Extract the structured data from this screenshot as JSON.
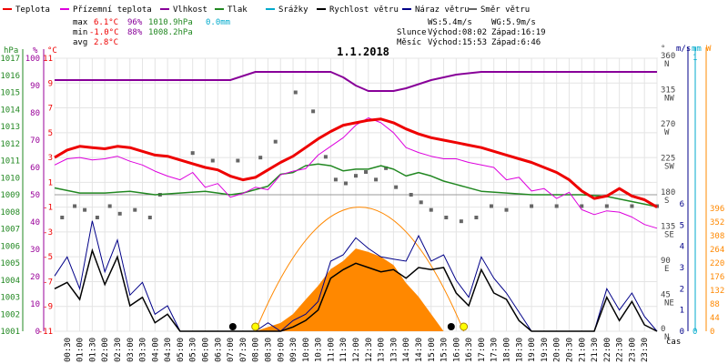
{
  "chart_data": {
    "type": "line",
    "title": "1.1.2018",
    "legend": [
      {
        "name": "Teplota",
        "color": "#ee0000"
      },
      {
        "name": "Přízemní teplota",
        "color": "#dd00dd"
      },
      {
        "name": "Vlhkost",
        "color": "#880099"
      },
      {
        "name": "Tlak",
        "color": "#228822"
      },
      {
        "name": "Srážky",
        "color": "#00aacc"
      },
      {
        "name": "Rychlost větru",
        "color": "#000000"
      },
      {
        "name": "Náraz větru",
        "color": "#000088"
      },
      {
        "name": "Směr větru",
        "color": "#666666"
      }
    ],
    "stats": {
      "max": {
        "label": "max",
        "temp": "6.1°C",
        "hum": "96%",
        "press": "1010.9hPa",
        "rain": "0.0mm"
      },
      "min": {
        "label": "min",
        "temp": "-1.0°C",
        "hum": "88%",
        "press": "1008.2hPa"
      },
      "avg": {
        "label": "avg",
        "temp": "2.8°C"
      }
    },
    "info": {
      "ws": "WS:5.4m/s",
      "wg": "WG:5.9m/s",
      "sun_label": "Slunce",
      "sun_rise": "Východ:08:02",
      "sun_set": "Západ:16:19",
      "moon_label": "Měsíc",
      "moon_rise": "Východ:15:53",
      "moon_set": "Západ:6:46"
    },
    "axes": {
      "hpa_unit": "hPa",
      "pct_unit": "%",
      "c_unit": "°C",
      "deg_unit": "°",
      "ms_unit": "m/s",
      "mm_unit": "mm",
      "w_unit": "W",
      "x_unit": "čas",
      "hpa_ticks": [
        "1017",
        "1016",
        "1015",
        "1014",
        "1013",
        "1012",
        "1011",
        "1010",
        "1009",
        "1008",
        "1007",
        "1006",
        "1005",
        "1004",
        "1003",
        "1002",
        "1001"
      ],
      "pct_ticks": [
        "100",
        "90",
        "80",
        "70",
        "60",
        "50",
        "40",
        "30",
        "20",
        "10",
        "0"
      ],
      "c_ticks": [
        "11",
        "9",
        "7",
        "5",
        "3",
        "1",
        "-1",
        "-3",
        "-5",
        "-7",
        "-9",
        "-11"
      ],
      "deg_ticks": [
        "360",
        "315",
        "270",
        "225",
        "180",
        "135",
        "90",
        "45",
        "0"
      ],
      "dir_ticks": [
        "N",
        "NW",
        "W",
        "SW",
        "S",
        "SE",
        "E",
        "NE",
        "N"
      ],
      "ms_ticks": [
        "6",
        "5",
        "4",
        "3",
        "2",
        "1",
        "0"
      ],
      "mm_ticks": [
        "1",
        "0"
      ],
      "w_ticks": [
        "396",
        "352",
        "308",
        "264",
        "220",
        "176",
        "132",
        "88",
        "44",
        "0"
      ],
      "x_ticks": [
        "00:30",
        "01:00",
        "01:30",
        "02:00",
        "02:30",
        "03:00",
        "03:30",
        "04:00",
        "04:30",
        "05:00",
        "05:30",
        "06:00",
        "06:30",
        "07:00",
        "07:30",
        "08:00",
        "08:30",
        "09:00",
        "09:30",
        "10:00",
        "10:30",
        "11:00",
        "11:30",
        "12:00",
        "12:30",
        "13:00",
        "13:30",
        "14:00",
        "14:30",
        "15:00",
        "15:30",
        "16:00",
        "16:30",
        "17:00",
        "17:30",
        "18:00",
        "18:30",
        "19:00",
        "19:30",
        "20:00",
        "20:30",
        "21:00",
        "21:30",
        "22:00",
        "22:30",
        "23:00",
        "23:30"
      ],
      "temp_range": [
        -11,
        11
      ],
      "hum_range": [
        0,
        100
      ],
      "press_range": [
        1001,
        1017
      ],
      "dir_range": [
        0,
        360
      ],
      "wind_range": [
        0,
        6
      ],
      "solar_range": [
        0,
        396
      ]
    },
    "series": [
      {
        "name": "Teplota",
        "unit": "°C",
        "x": [
          0,
          0.5,
          1,
          1.5,
          2,
          2.5,
          3,
          3.5,
          4,
          4.5,
          5,
          5.5,
          6,
          6.5,
          7,
          7.5,
          8,
          8.5,
          9,
          9.5,
          10,
          10.5,
          11,
          11.5,
          12,
          12.5,
          13,
          13.5,
          14,
          14.5,
          15,
          15.5,
          16,
          16.5,
          17,
          17.5,
          18,
          18.5,
          19,
          19.5,
          20,
          20.5,
          21,
          21.5,
          22,
          22.5,
          23,
          23.5,
          24
        ],
        "y": [
          3.0,
          3.6,
          3.9,
          3.8,
          3.7,
          3.9,
          3.8,
          3.5,
          3.2,
          3.1,
          2.8,
          2.5,
          2.2,
          2.0,
          1.5,
          1.2,
          1.4,
          2.0,
          2.6,
          3.1,
          3.8,
          4.5,
          5.1,
          5.6,
          5.8,
          6.0,
          6.1,
          5.8,
          5.3,
          4.9,
          4.6,
          4.4,
          4.2,
          4.0,
          3.8,
          3.5,
          3.2,
          2.9,
          2.6,
          2.2,
          1.8,
          1.2,
          0.3,
          -0.3,
          -0.1,
          0.5,
          -0.1,
          -0.4,
          -1.0
        ]
      },
      {
        "name": "Přízemní teplota",
        "unit": "°C",
        "x": [
          0,
          0.5,
          1,
          1.5,
          2,
          2.5,
          3,
          3.5,
          4,
          4.5,
          5,
          5.5,
          6,
          6.5,
          7,
          7.5,
          8,
          8.5,
          9,
          9.5,
          10,
          10.5,
          11,
          11.5,
          12,
          12.5,
          13,
          13.5,
          14,
          14.5,
          15,
          15.5,
          16,
          16.5,
          17,
          17.5,
          18,
          18.5,
          19,
          19.5,
          20,
          20.5,
          21,
          21.5,
          22,
          22.5,
          23,
          23.5,
          24
        ],
        "y": [
          2.4,
          2.9,
          3.0,
          2.8,
          2.9,
          3.1,
          2.7,
          2.4,
          1.9,
          1.5,
          1.2,
          1.8,
          0.6,
          0.9,
          -0.2,
          0.1,
          0.6,
          0.4,
          1.6,
          1.9,
          2.1,
          3.2,
          3.9,
          4.6,
          5.6,
          6.2,
          5.8,
          5.0,
          3.8,
          3.4,
          3.1,
          2.9,
          2.9,
          2.6,
          2.4,
          2.2,
          1.2,
          1.4,
          0.3,
          0.5,
          -0.3,
          0.2,
          -1.2,
          -1.6,
          -1.3,
          -1.4,
          -1.8,
          -2.4,
          -2.7
        ]
      },
      {
        "name": "Vlhkost",
        "unit": "%",
        "x": [
          0,
          1,
          2,
          3,
          4,
          5,
          6,
          7,
          8,
          9,
          10,
          11,
          11.5,
          12,
          12.5,
          13,
          13.5,
          14,
          15,
          16,
          17,
          18,
          19,
          20,
          21,
          22,
          23,
          24
        ],
        "y": [
          92,
          92,
          92,
          92,
          92,
          92,
          92,
          92,
          95,
          95,
          95,
          95,
          93,
          90,
          88,
          88,
          88,
          89,
          92,
          94,
          95,
          95,
          95,
          95,
          95,
          95,
          95,
          95
        ]
      },
      {
        "name": "Tlak",
        "unit": "hPa",
        "x": [
          0,
          1,
          2,
          3,
          4,
          5,
          6,
          7,
          7.5,
          8,
          8.5,
          9,
          9.5,
          10,
          10.5,
          11,
          11.5,
          12,
          12.5,
          13,
          13.5,
          14,
          14.5,
          15,
          15.5,
          16,
          17,
          18,
          19,
          20,
          21,
          22,
          23,
          24
        ],
        "y": [
          1009.4,
          1009.1,
          1009.1,
          1009.2,
          1009.0,
          1009.1,
          1009.2,
          1009.0,
          1009.1,
          1009.3,
          1009.5,
          1010.2,
          1010.3,
          1010.7,
          1010.8,
          1010.7,
          1010.4,
          1010.5,
          1010.5,
          1010.7,
          1010.5,
          1010.1,
          1010.3,
          1010.1,
          1009.8,
          1009.6,
          1009.2,
          1009.1,
          1009.0,
          1009.0,
          1009.0,
          1008.9,
          1008.6,
          1008.3
        ]
      },
      {
        "name": "Směr větru",
        "unit": "°",
        "x": [
          0.3,
          0.8,
          1.2,
          1.7,
          2.2,
          2.6,
          3.2,
          3.8,
          4.2,
          5.5,
          6.3,
          7.3,
          8.2,
          8.8,
          9.6,
          10.3,
          10.8,
          11.2,
          11.6,
          12.0,
          12.4,
          12.8,
          13.2,
          13.6,
          14.2,
          14.6,
          15.0,
          15.6,
          16.2,
          16.8,
          17.4,
          18.0,
          19.0,
          20.0,
          21.0,
          22.0,
          23.0,
          24.0
        ],
        "y": [
          150,
          165,
          160,
          150,
          165,
          155,
          160,
          150,
          180,
          235,
          225,
          225,
          229,
          250,
          315,
          290,
          230,
          200,
          195,
          205,
          210,
          200,
          215,
          190,
          180,
          170,
          160,
          150,
          145,
          150,
          165,
          160,
          165,
          165,
          165,
          165,
          165,
          165
        ]
      },
      {
        "name": "Rychlost větru",
        "unit": "m/s",
        "x": [
          0,
          0.5,
          1,
          1.5,
          2,
          2.5,
          3,
          3.5,
          4,
          4.5,
          5,
          5.5,
          6,
          6.5,
          7,
          7.5,
          8,
          8.5,
          9,
          9.5,
          10,
          10.5,
          11,
          11.5,
          12,
          12.5,
          13,
          13.5,
          14,
          14.5,
          15,
          15.5,
          16,
          16.5,
          17,
          17.5,
          18,
          18.5,
          19,
          19.5,
          20,
          20.5,
          21,
          21.5,
          22,
          22.5,
          23,
          23.5,
          24
        ],
        "y": [
          2.0,
          2.3,
          1.5,
          3.8,
          2.2,
          3.5,
          1.2,
          1.6,
          0.4,
          0.8,
          0,
          0,
          0,
          0,
          0,
          0,
          0,
          0,
          0,
          0.2,
          0.5,
          1.0,
          2.5,
          2.9,
          3.2,
          3.0,
          2.8,
          2.9,
          2.5,
          3.0,
          2.9,
          3.0,
          1.8,
          1.2,
          2.9,
          1.8,
          1.5,
          0.5,
          0,
          0,
          0,
          0,
          0,
          0,
          1.6,
          0.5,
          1.4,
          0.3,
          0
        ]
      },
      {
        "name": "Náraz větru",
        "unit": "m/s",
        "x": [
          0,
          0.5,
          1,
          1.5,
          2,
          2.5,
          3,
          3.5,
          4,
          4.5,
          5,
          5.5,
          6,
          6.5,
          7,
          7.5,
          8,
          8.5,
          9,
          9.5,
          10,
          10.5,
          11,
          11.5,
          12,
          12.5,
          13,
          13.5,
          14,
          14.5,
          15,
          15.5,
          16,
          16.5,
          17,
          17.5,
          18,
          18.5,
          19,
          19.5,
          20,
          20.5,
          21,
          21.5,
          22,
          22.5,
          23,
          23.5,
          24
        ],
        "y": [
          2.6,
          3.5,
          2.0,
          5.2,
          2.8,
          4.3,
          1.7,
          2.3,
          0.8,
          1.2,
          0,
          0,
          0,
          0,
          0,
          0,
          0,
          0.4,
          0,
          0.5,
          0.8,
          1.4,
          3.3,
          3.6,
          4.4,
          3.9,
          3.5,
          3.4,
          3.3,
          4.5,
          3.3,
          3.6,
          2.4,
          1.6,
          3.5,
          2.5,
          1.8,
          0.9,
          0,
          0,
          0,
          0,
          0,
          0,
          2.0,
          1.0,
          1.8,
          0.7,
          0
        ]
      },
      {
        "name": "Solar",
        "unit": "W",
        "x": [
          8.0,
          9.0,
          9.5,
          10.0,
          10.5,
          11.0,
          11.5,
          12.0,
          12.5,
          13.0,
          13.5,
          14.0,
          14.5,
          15.0,
          15.5
        ],
        "y": [
          0,
          12,
          25,
          46,
          66,
          90,
          102,
          120,
          115,
          108,
          96,
          70,
          50,
          25,
          0
        ]
      }
    ],
    "moon_events": [
      {
        "x": 7.1,
        "kind": "moon"
      },
      {
        "x": 15.8,
        "kind": "moon"
      }
    ],
    "sun_events": [
      {
        "x": 8.0,
        "kind": "sun"
      },
      {
        "x": 16.3,
        "kind": "sun"
      }
    ],
    "sun_arc": {
      "rise": 8.0,
      "set": 16.3,
      "peak_c": -1.0
    }
  }
}
